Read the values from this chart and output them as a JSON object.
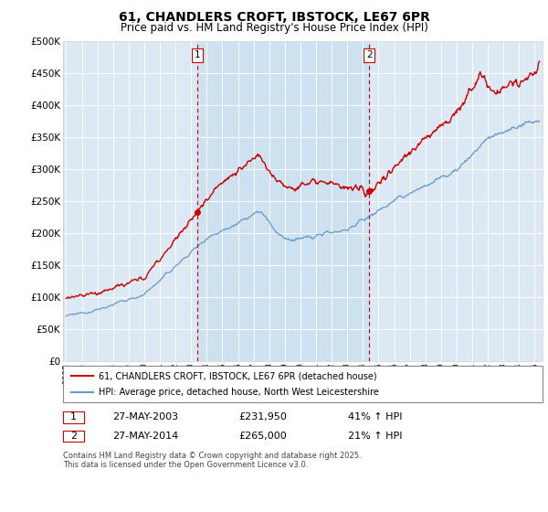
{
  "title": "61, CHANDLERS CROFT, IBSTOCK, LE67 6PR",
  "subtitle": "Price paid vs. HM Land Registry's House Price Index (HPI)",
  "ylabel_ticks": [
    "£0",
    "£50K",
    "£100K",
    "£150K",
    "£200K",
    "£250K",
    "£300K",
    "£350K",
    "£400K",
    "£450K",
    "£500K"
  ],
  "ytick_values": [
    0,
    50000,
    100000,
    150000,
    200000,
    250000,
    300000,
    350000,
    400000,
    450000,
    500000
  ],
  "ylim": [
    0,
    500000
  ],
  "xlim_start": 1994.8,
  "xlim_end": 2025.5,
  "bg_color": "#dce9f5",
  "shade_color": "#c8dff0",
  "plot_bg_color": "#dce9f5",
  "red_color": "#cc0000",
  "blue_color": "#6699cc",
  "transaction1_x": 2003.4,
  "transaction1_y": 231950,
  "transaction1_label": "1",
  "transaction2_x": 2014.4,
  "transaction2_y": 265000,
  "transaction2_label": "2",
  "legend_line1": "61, CHANDLERS CROFT, IBSTOCK, LE67 6PR (detached house)",
  "legend_line2": "HPI: Average price, detached house, North West Leicestershire",
  "table_row1": [
    "1",
    "27-MAY-2003",
    "£231,950",
    "41% ↑ HPI"
  ],
  "table_row2": [
    "2",
    "27-MAY-2014",
    "£265,000",
    "21% ↑ HPI"
  ],
  "footer": "Contains HM Land Registry data © Crown copyright and database right 2025.\nThis data is licensed under the Open Government Licence v3.0.",
  "title_fontsize": 10,
  "subtitle_fontsize": 8.5
}
